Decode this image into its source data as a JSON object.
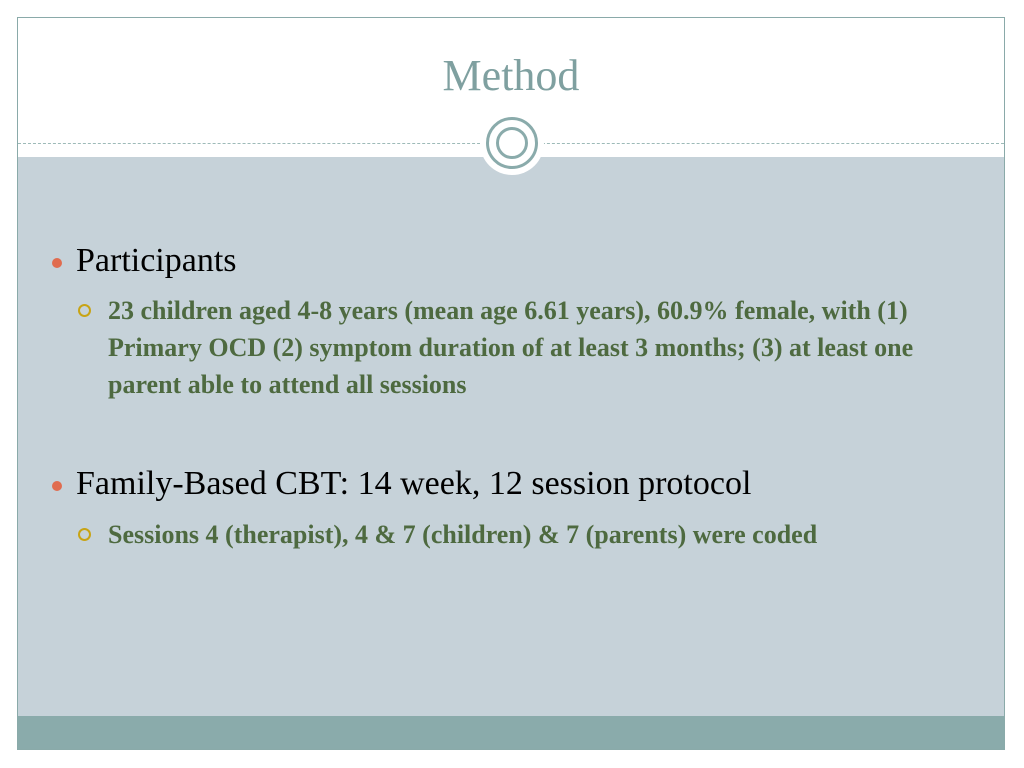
{
  "slide": {
    "title": "Method",
    "bullets": [
      {
        "label": "Participants",
        "sub": "23 children aged 4-8 years (mean age 6.61 years), 60.9% female, with (1) Primary OCD (2) symptom duration of at least 3 months; (3) at least one parent able to attend all sessions"
      },
      {
        "label": "Family-Based CBT: 14 week, 12 session protocol",
        "sub": "Sessions 4 (therapist), 4 & 7 (children) & 7 (parents) were coded"
      }
    ]
  },
  "colors": {
    "title": "#7fa0a0",
    "content_background": "#c6d2d9",
    "footer_band": "#8aabab",
    "bullet_dot": "#e06c4f",
    "sub_bullet_ring": "#c8a415",
    "sub_text": "#4e6a40"
  },
  "icons": {
    "bullet": "filled-circle-bullet",
    "sub_bullet": "hollow-circle-bullet",
    "ornament": "concentric-circle-ornament"
  }
}
